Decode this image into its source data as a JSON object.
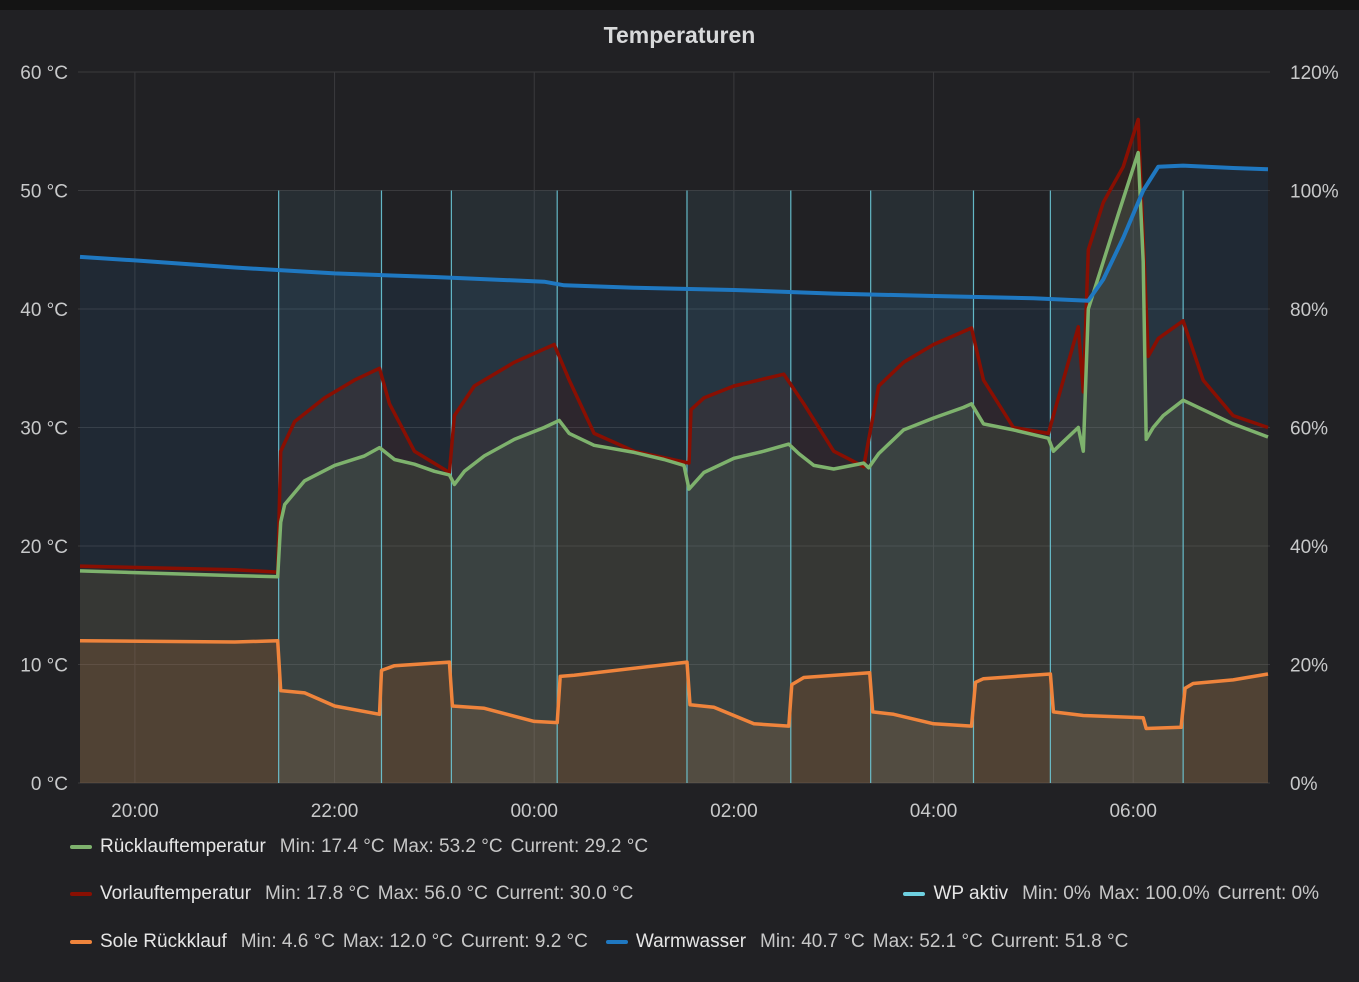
{
  "panel": {
    "title": "Temperaturen"
  },
  "chart_data": {
    "type": "line",
    "title": "Temperaturen",
    "x_axis": {
      "ticks": [
        "20:00",
        "22:00",
        "00:00",
        "02:00",
        "04:00",
        "06:00"
      ],
      "tick_hours": [
        20,
        22,
        24,
        26,
        28,
        30
      ],
      "range_hours": [
        19.43,
        31.37
      ]
    },
    "y_left": {
      "ticks": [
        "0 °C",
        "10 °C",
        "20 °C",
        "30 °C",
        "40 °C",
        "50 °C",
        "60 °C"
      ],
      "range": [
        0,
        60
      ],
      "unit": "°C"
    },
    "y_right": {
      "ticks": [
        "0%",
        "20%",
        "40%",
        "60%",
        "80%",
        "100%",
        "120%"
      ],
      "range": [
        0,
        120
      ],
      "unit": "%"
    },
    "grid": true,
    "legend_position": "bottom",
    "series": [
      {
        "name": "Rücklauftemperatur",
        "color": "#7eb26d",
        "axis": "left",
        "fill": true,
        "stats": {
          "min": "Min: 17.4 °C",
          "max": "Max: 53.2 °C",
          "current": "Current: 29.2 °C"
        },
        "points": [
          [
            19.45,
            17.9
          ],
          [
            21.0,
            17.5
          ],
          [
            21.43,
            17.4
          ],
          [
            21.46,
            22.0
          ],
          [
            21.5,
            23.5
          ],
          [
            21.7,
            25.5
          ],
          [
            22.0,
            26.8
          ],
          [
            22.3,
            27.6
          ],
          [
            22.45,
            28.3
          ],
          [
            22.6,
            27.3
          ],
          [
            22.8,
            26.9
          ],
          [
            23.0,
            26.3
          ],
          [
            23.15,
            26.0
          ],
          [
            23.2,
            25.2
          ],
          [
            23.3,
            26.3
          ],
          [
            23.5,
            27.6
          ],
          [
            23.8,
            29.0
          ],
          [
            24.1,
            30.0
          ],
          [
            24.25,
            30.6
          ],
          [
            24.35,
            29.5
          ],
          [
            24.6,
            28.5
          ],
          [
            25.0,
            27.9
          ],
          [
            25.3,
            27.3
          ],
          [
            25.5,
            26.8
          ],
          [
            25.55,
            24.8
          ],
          [
            25.7,
            26.2
          ],
          [
            26.0,
            27.4
          ],
          [
            26.3,
            28.0
          ],
          [
            26.55,
            28.6
          ],
          [
            26.65,
            27.8
          ],
          [
            26.8,
            26.8
          ],
          [
            27.0,
            26.5
          ],
          [
            27.3,
            27.0
          ],
          [
            27.35,
            26.6
          ],
          [
            27.45,
            27.8
          ],
          [
            27.7,
            29.8
          ],
          [
            28.0,
            30.8
          ],
          [
            28.3,
            31.7
          ],
          [
            28.38,
            32.0
          ],
          [
            28.5,
            30.3
          ],
          [
            28.8,
            29.8
          ],
          [
            29.15,
            29.1
          ],
          [
            29.2,
            28.0
          ],
          [
            29.3,
            28.8
          ],
          [
            29.45,
            30.0
          ],
          [
            29.5,
            28.0
          ],
          [
            29.55,
            40.0
          ],
          [
            29.7,
            44.0
          ],
          [
            29.85,
            48.0
          ],
          [
            30.05,
            53.2
          ],
          [
            30.1,
            44.0
          ],
          [
            30.13,
            29.0
          ],
          [
            30.2,
            30.0
          ],
          [
            30.3,
            31.0
          ],
          [
            30.5,
            32.3
          ],
          [
            30.7,
            31.5
          ],
          [
            31.0,
            30.3
          ],
          [
            31.35,
            29.2
          ]
        ]
      },
      {
        "name": "Vorlauftemperatur",
        "color": "#890f02",
        "axis": "left",
        "fill": true,
        "stats": {
          "min": "Min: 17.8 °C",
          "max": "Max: 56.0 °C",
          "current": "Current: 30.0 °C"
        },
        "points": [
          [
            19.45,
            18.3
          ],
          [
            21.0,
            18.0
          ],
          [
            21.43,
            17.8
          ],
          [
            21.46,
            28.0
          ],
          [
            21.6,
            30.5
          ],
          [
            21.9,
            32.5
          ],
          [
            22.2,
            34.0
          ],
          [
            22.45,
            35.0
          ],
          [
            22.55,
            32.0
          ],
          [
            22.8,
            28.0
          ],
          [
            23.15,
            26.2
          ],
          [
            23.2,
            31.0
          ],
          [
            23.4,
            33.5
          ],
          [
            23.8,
            35.5
          ],
          [
            24.2,
            37.0
          ],
          [
            24.35,
            34.0
          ],
          [
            24.6,
            29.5
          ],
          [
            25.0,
            28.0
          ],
          [
            25.55,
            27.0
          ],
          [
            25.57,
            31.5
          ],
          [
            25.7,
            32.5
          ],
          [
            26.0,
            33.5
          ],
          [
            26.5,
            34.5
          ],
          [
            26.7,
            32.0
          ],
          [
            27.0,
            28.0
          ],
          [
            27.3,
            26.7
          ],
          [
            27.35,
            29.0
          ],
          [
            27.45,
            33.5
          ],
          [
            27.7,
            35.5
          ],
          [
            28.0,
            37.0
          ],
          [
            28.38,
            38.4
          ],
          [
            28.5,
            34.0
          ],
          [
            28.8,
            30.0
          ],
          [
            29.15,
            29.5
          ],
          [
            29.3,
            34.0
          ],
          [
            29.45,
            38.5
          ],
          [
            29.5,
            33.0
          ],
          [
            29.55,
            45.0
          ],
          [
            29.7,
            49.0
          ],
          [
            29.9,
            52.0
          ],
          [
            30.05,
            56.0
          ],
          [
            30.1,
            46.0
          ],
          [
            30.15,
            36.0
          ],
          [
            30.25,
            37.5
          ],
          [
            30.5,
            39.0
          ],
          [
            30.7,
            34.0
          ],
          [
            31.0,
            31.0
          ],
          [
            31.35,
            30.0
          ]
        ]
      },
      {
        "name": "WP aktiv",
        "color": "#6ed0e0",
        "axis": "right",
        "fill": true,
        "stats": {
          "min": "Min: 0%",
          "max": "Max: 100.0%",
          "current": "Current: 0%"
        },
        "on_intervals": [
          [
            21.44,
            22.47
          ],
          [
            23.17,
            24.23
          ],
          [
            25.53,
            26.57
          ],
          [
            27.37,
            28.4
          ],
          [
            29.17,
            30.5
          ]
        ]
      },
      {
        "name": "Sole Rückklauf",
        "color": "#ef843c",
        "axis": "left",
        "fill": true,
        "stats": {
          "min": "Min: 4.6 °C",
          "max": "Max: 12.0 °C",
          "current": "Current: 9.2 °C"
        },
        "points": [
          [
            19.45,
            12.0
          ],
          [
            21.0,
            11.9
          ],
          [
            21.43,
            12.0
          ],
          [
            21.46,
            7.8
          ],
          [
            21.7,
            7.6
          ],
          [
            22.0,
            6.5
          ],
          [
            22.45,
            5.8
          ],
          [
            22.47,
            9.5
          ],
          [
            22.6,
            9.9
          ],
          [
            23.15,
            10.2
          ],
          [
            23.18,
            6.5
          ],
          [
            23.5,
            6.3
          ],
          [
            24.0,
            5.2
          ],
          [
            24.23,
            5.1
          ],
          [
            24.26,
            9.0
          ],
          [
            24.4,
            9.1
          ],
          [
            25.53,
            10.2
          ],
          [
            25.56,
            6.6
          ],
          [
            25.8,
            6.4
          ],
          [
            26.2,
            5.0
          ],
          [
            26.55,
            4.8
          ],
          [
            26.58,
            8.3
          ],
          [
            26.7,
            8.9
          ],
          [
            27.36,
            9.3
          ],
          [
            27.39,
            6.0
          ],
          [
            27.6,
            5.8
          ],
          [
            28.0,
            5.0
          ],
          [
            28.38,
            4.8
          ],
          [
            28.42,
            8.5
          ],
          [
            28.5,
            8.8
          ],
          [
            29.17,
            9.2
          ],
          [
            29.2,
            6.0
          ],
          [
            29.5,
            5.7
          ],
          [
            30.1,
            5.5
          ],
          [
            30.13,
            4.6
          ],
          [
            30.48,
            4.7
          ],
          [
            30.52,
            8.0
          ],
          [
            30.6,
            8.4
          ],
          [
            31.0,
            8.7
          ],
          [
            31.35,
            9.2
          ]
        ]
      },
      {
        "name": "Warmwasser",
        "color": "#1f78c1",
        "axis": "left",
        "fill": true,
        "stats": {
          "min": "Min: 40.7 °C",
          "max": "Max: 52.1 °C",
          "current": "Current: 51.8 °C"
        },
        "points": [
          [
            19.45,
            44.4
          ],
          [
            20.0,
            44.1
          ],
          [
            21.0,
            43.5
          ],
          [
            22.0,
            43.0
          ],
          [
            23.0,
            42.7
          ],
          [
            24.1,
            42.3
          ],
          [
            24.3,
            42.0
          ],
          [
            25.0,
            41.8
          ],
          [
            26.0,
            41.6
          ],
          [
            27.0,
            41.3
          ],
          [
            28.0,
            41.1
          ],
          [
            29.0,
            40.9
          ],
          [
            29.55,
            40.7
          ],
          [
            29.7,
            42.5
          ],
          [
            29.9,
            46.0
          ],
          [
            30.1,
            50.0
          ],
          [
            30.25,
            52.0
          ],
          [
            30.5,
            52.1
          ],
          [
            31.0,
            51.9
          ],
          [
            31.35,
            51.8
          ]
        ]
      }
    ]
  },
  "legend": {
    "rows": [
      [
        {
          "series": 0
        }
      ],
      [
        {
          "series": 1
        },
        {
          "series": 2,
          "align": "right"
        }
      ],
      [
        {
          "series": 3
        },
        {
          "series": 4
        }
      ]
    ]
  }
}
